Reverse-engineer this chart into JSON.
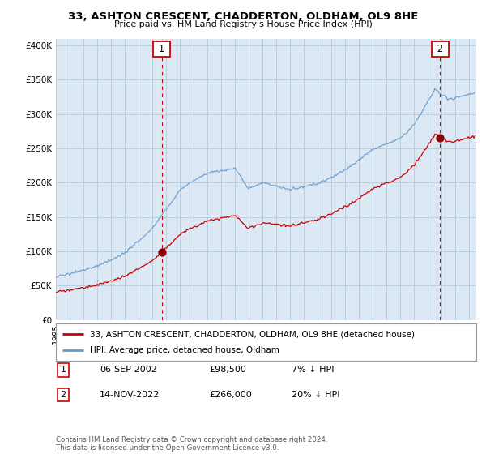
{
  "title": "33, ASHTON CRESCENT, CHADDERTON, OLDHAM, OL9 8HE",
  "subtitle": "Price paid vs. HM Land Registry's House Price Index (HPI)",
  "ylabel_ticks": [
    "£0",
    "£50K",
    "£100K",
    "£150K",
    "£200K",
    "£250K",
    "£300K",
    "£350K",
    "£400K"
  ],
  "ytick_values": [
    0,
    50000,
    100000,
    150000,
    200000,
    250000,
    300000,
    350000,
    400000
  ],
  "ylim": [
    0,
    410000
  ],
  "xlim_start": 1995.0,
  "xlim_end": 2025.5,
  "purchase1_x": 2002.69,
  "purchase1_y": 98500,
  "purchase2_x": 2022.87,
  "purchase2_y": 266000,
  "legend_label1": "33, ASHTON CRESCENT, CHADDERTON, OLDHAM, OL9 8HE (detached house)",
  "legend_label2": "HPI: Average price, detached house, Oldham",
  "note1_num": "1",
  "note1_date": "06-SEP-2002",
  "note1_price": "£98,500",
  "note1_hpi": "7% ↓ HPI",
  "note2_num": "2",
  "note2_date": "14-NOV-2022",
  "note2_price": "£266,000",
  "note2_hpi": "20% ↓ HPI",
  "footer": "Contains HM Land Registry data © Crown copyright and database right 2024.\nThis data is licensed under the Open Government Licence v3.0.",
  "line_color_property": "#cc0000",
  "line_color_hpi": "#6699cc",
  "bg_color": "#ffffff",
  "chart_bg_color": "#dce9f5",
  "grid_color": "#b8cfe0",
  "vline_color": "#cc0000",
  "point_color_property": "#8b0000",
  "label1_box_color": "#cc0000",
  "label2_box_color": "#cc0000"
}
